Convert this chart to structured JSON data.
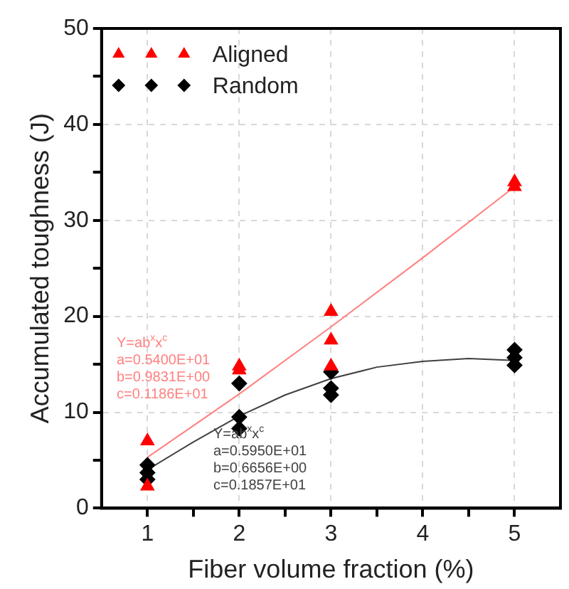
{
  "chart_data": {
    "type": "scatter",
    "xlabel": "Fiber volume fraction (%)",
    "ylabel": "Accumulated toughness (J)",
    "xlim": [
      0.5,
      5.5
    ],
    "ylim": [
      0,
      50
    ],
    "xticks": [
      1,
      {
        "value": 1.5,
        "label": null
      },
      2,
      {
        "value": 2.5,
        "label": null
      },
      3,
      {
        "value": 3.5,
        "label": null
      },
      4,
      {
        "value": 4.5,
        "label": null
      },
      5
    ],
    "yticks": [
      0,
      {
        "value": 5,
        "label": null
      },
      10,
      {
        "value": 15,
        "label": null
      },
      20,
      {
        "value": 25,
        "label": null
      },
      30,
      {
        "value": 35,
        "label": null
      },
      40,
      {
        "value": 45,
        "label": null
      },
      50
    ],
    "grid": true,
    "legend": "top left",
    "series": [
      {
        "name": "Aligned",
        "color": "#ff0000",
        "marker": "triangle",
        "x": [
          1,
          1,
          2,
          2,
          3,
          3,
          3,
          5,
          5
        ],
        "values": [
          7.0,
          2.3,
          14.8,
          14.4,
          20.5,
          17.5,
          14.8,
          34,
          33.5
        ]
      },
      {
        "name": "Random",
        "color": "#000000",
        "marker": "diamond",
        "x": [
          1,
          1,
          1,
          2,
          2,
          2,
          3,
          3,
          3,
          5,
          5,
          5
        ],
        "values": [
          4.5,
          3.7,
          3.0,
          13.0,
          9.5,
          8.3,
          14.2,
          12.5,
          11.8,
          16.5,
          15.7,
          14.9
        ]
      },
      {
        "type": "line",
        "color": "#ff8080",
        "marker": "none",
        "x": [
          1,
          2,
          3,
          4,
          5
        ],
        "values": [
          5.3,
          11.9,
          18.9,
          26.1,
          33.5
        ]
      },
      {
        "type": "line",
        "color": "#404040",
        "marker": "none",
        "x": [
          1,
          1.5,
          2,
          2.5,
          3,
          3.5,
          4,
          4.5,
          5
        ],
        "values": [
          4.0,
          6.9,
          9.6,
          11.8,
          13.5,
          14.7,
          15.3,
          15.6,
          15.4
        ]
      }
    ],
    "annotations": [
      "Y=ab$^{x}$x$^{c}$\na=0.5400E+01\nb=0.9831E+00\nc=0.1186E+01",
      "Y=ab$^{x}$x$^{c}$\na=0.5950E+01\nb=0.6656E+00\nc=0.1857E+01"
    ]
  }
}
